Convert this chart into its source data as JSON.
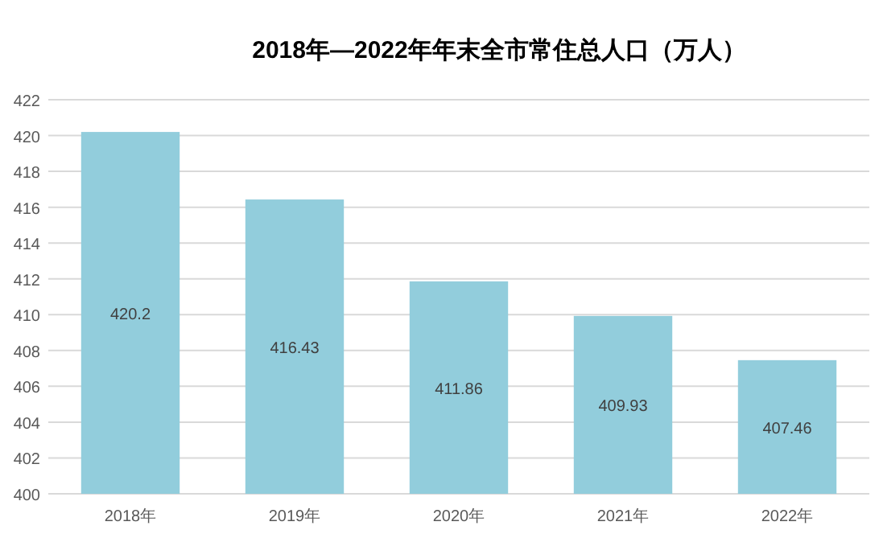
{
  "chart_data": {
    "type": "bar",
    "title": "2018年—2022年年末全市常住总人口（万人）",
    "categories": [
      "2018年",
      "2019年",
      "2020年",
      "2021年",
      "2022年"
    ],
    "values": [
      420.2,
      416.43,
      411.86,
      409.93,
      407.46
    ],
    "color": "#92cddc",
    "ylim": [
      400,
      422
    ],
    "yticks": [
      400,
      402,
      404,
      406,
      408,
      410,
      412,
      414,
      416,
      418,
      420,
      422
    ],
    "grid": "y",
    "data_labels": true
  }
}
